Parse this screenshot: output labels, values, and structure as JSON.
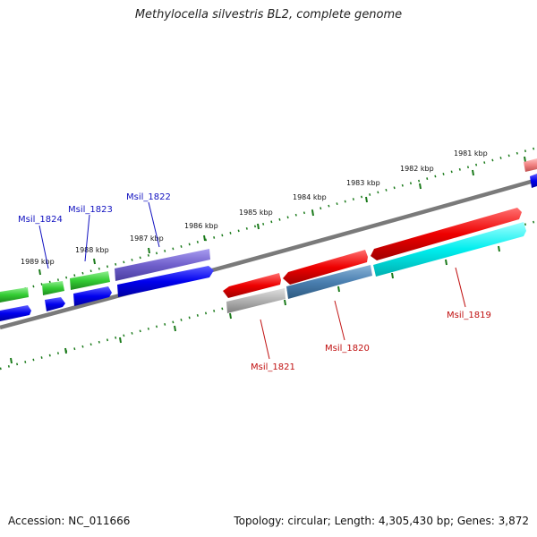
{
  "title": "Methylocella silvestris BL2, complete genome",
  "footer": {
    "accession": "Accession: NC_011666",
    "summary": "Topology: circular; Length: 4,305,430 bp; Genes: 3,872"
  },
  "kbp_labels": [
    "1981 kbp",
    "1982 kbp",
    "1983 kbp",
    "1984 kbp",
    "1985 kbp",
    "1986 kbp",
    "1987 kbp",
    "1988 kbp",
    "1989 kbp"
  ],
  "genes": {
    "msil_1819": "Msil_1819",
    "msil_1820": "Msil_1820",
    "msil_1821": "Msil_1821",
    "msil_1822": "Msil_1822",
    "msil_1823": "Msil_1823",
    "msil_1824": "Msil_1824"
  },
  "colors": {
    "backbone": "#808080",
    "tick": "#1a7a1a",
    "red": "#ee0000",
    "blue": "#0000ee",
    "green": "#33cc33",
    "purple": "#7060cc",
    "cyan": "#00eeee",
    "steelblue": "#4a7fb0",
    "grey": "#b0b0b0",
    "pink": "#f08080"
  }
}
